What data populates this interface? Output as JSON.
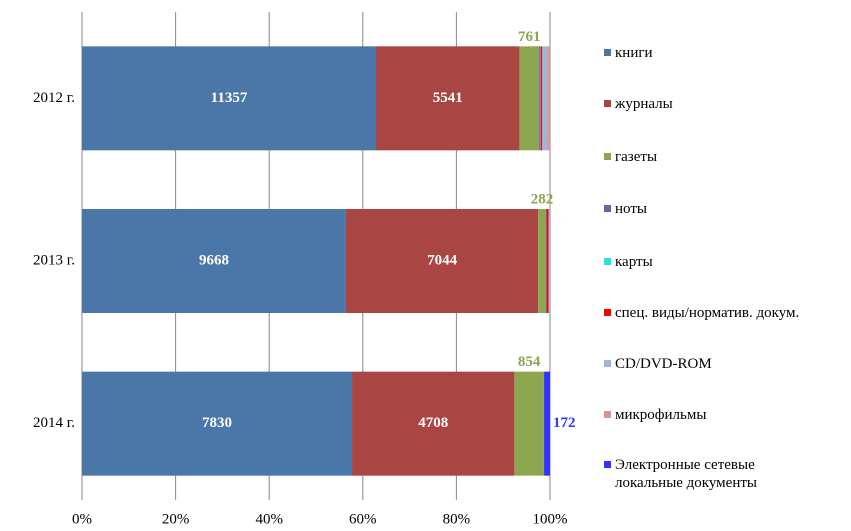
{
  "chart_data": {
    "type": "stacked-bar-100",
    "orientation": "horizontal",
    "categories": [
      "2012 г.",
      "2013 г.",
      "2014 г."
    ],
    "series": [
      {
        "name": "книги",
        "color": "#4a76a8",
        "values": [
          11357,
          9668,
          7830
        ],
        "data_labels": [
          true,
          true,
          true
        ]
      },
      {
        "name": "журналы",
        "color": "#a94644",
        "values": [
          5541,
          7044,
          4708
        ],
        "data_labels": [
          true,
          true,
          true
        ]
      },
      {
        "name": "газеты",
        "color": "#8ba64f",
        "values": [
          761,
          282,
          854
        ],
        "data_labels": [
          true,
          true,
          true
        ]
      },
      {
        "name": "ноты",
        "color": "#7460a0",
        "values": [
          60,
          40,
          6
        ],
        "data_labels": [
          false,
          false,
          false
        ]
      },
      {
        "name": "карты",
        "color": "#22e0f0",
        "values": [
          10,
          0,
          0
        ],
        "data_labels": [
          false,
          false,
          false
        ]
      },
      {
        "name": "спец. виды/норматив. докум.",
        "color": "#ff0000",
        "values": [
          50,
          60,
          0
        ],
        "data_labels": [
          false,
          false,
          false
        ]
      },
      {
        "name": "CD/DVD-ROM",
        "color": "#9fb4d8",
        "values": [
          200,
          30,
          0
        ],
        "data_labels": [
          false,
          false,
          false
        ]
      },
      {
        "name": "микрофильмы",
        "color": "#d99594",
        "values": [
          100,
          20,
          0
        ],
        "data_labels": [
          false,
          false,
          false
        ]
      },
      {
        "name": "Электронные сетевые локальные документы",
        "color": "#3333ff",
        "values": [
          0,
          0,
          172
        ],
        "data_labels": [
          false,
          false,
          true
        ]
      }
    ],
    "xlim": [
      0,
      100
    ],
    "xticks": [
      {
        "value": 0,
        "label": "0%"
      },
      {
        "value": 20,
        "label": "20%"
      },
      {
        "value": 40,
        "label": "40%"
      },
      {
        "value": 60,
        "label": "60%"
      },
      {
        "value": 80,
        "label": "80%"
      },
      {
        "value": 100,
        "label": "100%"
      }
    ],
    "grid": true,
    "legend": "right"
  }
}
